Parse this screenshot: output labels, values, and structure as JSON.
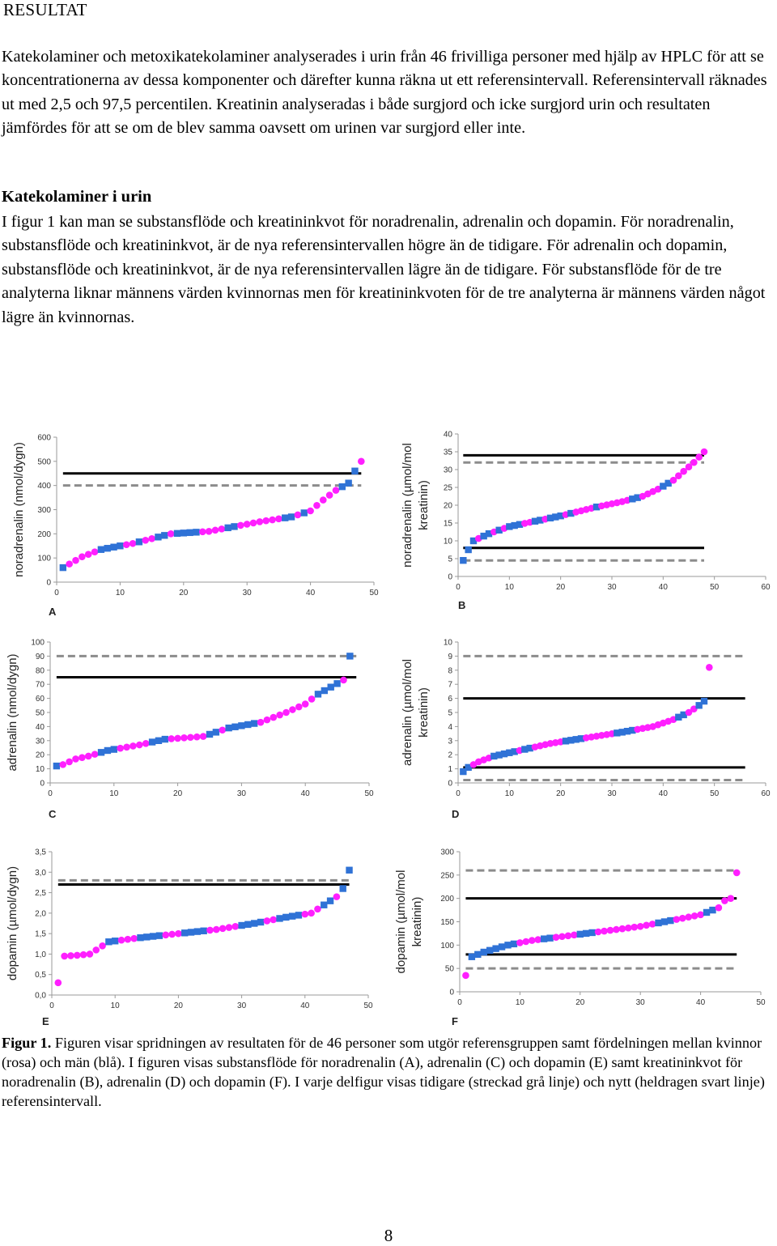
{
  "heading": "RESULTAT",
  "paragraph1": "Katekolaminer och metoxikatekolaminer analyserades i urin från 46 frivilliga personer med hjälp av HPLC för att se koncentrationerna av dessa komponenter och därefter kunna räkna ut ett referensintervall. Referensintervall räknades ut med 2,5 och 97,5 percentilen. Kreatinin analyseradas i både surgjord och icke surgjord urin och resultaten jämfördes för att se om de blev samma oavsett om urinen var surgjord eller inte.",
  "subheading": "Katekolaminer i urin",
  "paragraph2": "I figur 1 kan man se substansflöde och kreatininkvot för noradrenalin, adrenalin och dopamin. För noradrenalin, substansflöde och kreatininkvot, är de nya referensintervallen högre än de tidigare. För adrenalin och dopamin, substansflöde och kreatininkvot, är de nya referensintervallen lägre än de tidigare. För substansflöde för de tre analyterna liknar männens värden kvinnornas men för kreatininkvoten för de tre analyterna är männens värden något lägre än kvinnornas.",
  "caption": {
    "label": "Figur 1.",
    "text": " Figuren visar spridningen av resultaten för de 46 personer som utgör referensgruppen samt fördelningen mellan kvinnor (rosa) och män (blå). I figuren visas substansflöde för noradrenalin (A), adrenalin (C) och dopamin (E) samt kreatininkvot för noradrenalin (B), adrenalin (D) och dopamin (F). I varje delfigur visas tidigare (streckad grå linje) och nytt (heldragen svart linje) referensintervall."
  },
  "page_number": "8",
  "colors": {
    "women": "#ff1fff",
    "men": "#2f72d6",
    "new_interval": "#000000",
    "old_interval": "#8c8c8c"
  },
  "chart_data": [
    {
      "id": "A",
      "type": "scatter",
      "letter": "A",
      "ylabel": "noradrenalin (nmol/dygn)",
      "xlabel": "",
      "xlim": [
        0,
        50
      ],
      "ylim": [
        0,
        600
      ],
      "xticks": [
        "0",
        "10",
        "20",
        "30",
        "40",
        "50"
      ],
      "yticks": [
        "0",
        "100",
        "200",
        "300",
        "400",
        "500",
        "600"
      ],
      "new_interval": [
        450
      ],
      "old_interval": [
        400
      ],
      "ref_xrange": [
        1,
        48
      ],
      "anchors": [
        [
          1,
          60
        ],
        [
          2,
          75
        ],
        [
          4,
          105
        ],
        [
          7,
          135
        ],
        [
          12,
          160
        ],
        [
          18,
          200
        ],
        [
          24,
          210
        ],
        [
          32,
          250
        ],
        [
          37,
          270
        ],
        [
          40,
          295
        ],
        [
          42,
          340
        ],
        [
          44,
          380
        ],
        [
          46,
          410
        ],
        [
          47,
          460
        ],
        [
          48,
          500
        ]
      ],
      "men_indices": [
        1,
        7,
        8,
        9,
        10,
        13,
        16,
        17,
        19,
        20,
        21,
        22,
        27,
        28,
        36,
        37,
        39,
        45,
        46,
        47
      ]
    },
    {
      "id": "B",
      "type": "scatter",
      "letter": "B",
      "ylabel": "noradrenalin (µmol/mol kreatinin)",
      "xlabel": "",
      "xlim": [
        0,
        60
      ],
      "ylim": [
        0,
        40
      ],
      "xticks": [
        "0",
        "10",
        "20",
        "30",
        "40",
        "50",
        "60"
      ],
      "yticks": [
        "0",
        "5",
        "10",
        "15",
        "20",
        "25",
        "30",
        "35",
        "40"
      ],
      "new_interval": [
        34,
        8
      ],
      "old_interval": [
        32,
        4.5
      ],
      "ref_xrange": [
        1,
        48
      ],
      "anchors": [
        [
          1,
          4.5
        ],
        [
          2,
          7.5
        ],
        [
          3,
          10
        ],
        [
          6,
          12
        ],
        [
          10,
          14
        ],
        [
          15,
          15.5
        ],
        [
          20,
          17
        ],
        [
          27,
          19.5
        ],
        [
          32,
          21
        ],
        [
          36,
          22.5
        ],
        [
          39,
          24.5
        ],
        [
          42,
          27
        ],
        [
          44,
          29.5
        ],
        [
          46,
          32
        ],
        [
          47,
          33.5
        ],
        [
          48,
          35
        ]
      ],
      "men_indices": [
        1,
        2,
        3,
        5,
        6,
        8,
        10,
        11,
        12,
        15,
        16,
        18,
        19,
        20,
        22,
        27,
        34,
        35,
        40,
        41
      ]
    },
    {
      "id": "C",
      "type": "scatter",
      "letter": "C",
      "ylabel": "adrenalin (nmol/dygn)",
      "xlabel": "",
      "xlim": [
        0,
        50
      ],
      "ylim": [
        0,
        100
      ],
      "xticks": [
        "0",
        "10",
        "20",
        "30",
        "40",
        "50"
      ],
      "yticks": [
        "0",
        "10",
        "20",
        "30",
        "40",
        "50",
        "60",
        "70",
        "80",
        "90",
        "100"
      ],
      "new_interval": [
        75
      ],
      "old_interval": [
        90
      ],
      "ref_xrange": [
        1,
        48
      ],
      "anchors": [
        [
          1,
          12
        ],
        [
          2,
          13
        ],
        [
          4,
          17
        ],
        [
          6,
          19
        ],
        [
          9,
          23
        ],
        [
          14,
          27
        ],
        [
          18,
          31
        ],
        [
          24,
          33
        ],
        [
          28,
          39
        ],
        [
          33,
          43
        ],
        [
          37,
          50
        ],
        [
          40,
          56
        ],
        [
          42,
          63
        ],
        [
          44,
          68
        ],
        [
          46,
          73
        ],
        [
          47,
          90
        ]
      ],
      "men_indices": [
        1,
        8,
        9,
        10,
        16,
        17,
        18,
        25,
        26,
        28,
        29,
        30,
        31,
        32,
        42,
        43,
        44,
        45,
        47
      ]
    },
    {
      "id": "D",
      "type": "scatter",
      "letter": "D",
      "ylabel": "adrenalin (µmol/mol kreatinin)",
      "xlabel": "",
      "xlim": [
        0,
        60
      ],
      "ylim": [
        0,
        10
      ],
      "xticks": [
        "0",
        "10",
        "20",
        "30",
        "40",
        "50",
        "60"
      ],
      "yticks": [
        "0",
        "1",
        "2",
        "3",
        "4",
        "5",
        "6",
        "7",
        "8",
        "9",
        "10"
      ],
      "new_interval": [
        6,
        1.1
      ],
      "old_interval": [
        9,
        0.2
      ],
      "ref_xrange": [
        1,
        56
      ],
      "anchors": [
        [
          1,
          0.8
        ],
        [
          2,
          1.1
        ],
        [
          4,
          1.5
        ],
        [
          7,
          1.9
        ],
        [
          12,
          2.3
        ],
        [
          18,
          2.8
        ],
        [
          25,
          3.2
        ],
        [
          32,
          3.6
        ],
        [
          38,
          4.0
        ],
        [
          42,
          4.5
        ],
        [
          45,
          5.0
        ],
        [
          47,
          5.5
        ],
        [
          48,
          5.8
        ],
        [
          49,
          8.2
        ]
      ],
      "men_indices": [
        1,
        2,
        7,
        8,
        9,
        10,
        11,
        13,
        14,
        21,
        22,
        23,
        24,
        31,
        32,
        33,
        34,
        43,
        44,
        47,
        48
      ]
    },
    {
      "id": "E",
      "type": "scatter",
      "letter": "E",
      "ylabel": "dopamin (µmol/dygn)",
      "xlabel": "",
      "xlim": [
        0,
        50
      ],
      "ylim": [
        0,
        3.5
      ],
      "xticks": [
        "0",
        "10",
        "20",
        "30",
        "40",
        "50"
      ],
      "yticks": [
        "0,0",
        "0,5",
        "1,0",
        "1,5",
        "2,0",
        "2,5",
        "3,0",
        "3,5"
      ],
      "new_interval": [
        2.7
      ],
      "old_interval": [
        2.8
      ],
      "ref_xrange": [
        1,
        47
      ],
      "anchors": [
        [
          1,
          0.3
        ],
        [
          2,
          0.95
        ],
        [
          4,
          0.97
        ],
        [
          6,
          1.0
        ],
        [
          9,
          1.3
        ],
        [
          14,
          1.4
        ],
        [
          20,
          1.5
        ],
        [
          26,
          1.6
        ],
        [
          32,
          1.75
        ],
        [
          37,
          1.9
        ],
        [
          41,
          2.0
        ],
        [
          43,
          2.2
        ],
        [
          45,
          2.4
        ],
        [
          46,
          2.6
        ],
        [
          47,
          3.05
        ]
      ],
      "men_indices": [
        9,
        10,
        14,
        15,
        16,
        17,
        21,
        22,
        23,
        24,
        30,
        31,
        32,
        33,
        36,
        37,
        38,
        39,
        43,
        44,
        46,
        47
      ]
    },
    {
      "id": "F",
      "type": "scatter",
      "letter": "F",
      "ylabel": "dopamin (µmol/mol kreatinin)",
      "xlabel": "",
      "xlim": [
        0,
        50
      ],
      "ylim": [
        0,
        300
      ],
      "xticks": [
        "0",
        "10",
        "20",
        "30",
        "40",
        "50"
      ],
      "yticks": [
        "0",
        "50",
        "100",
        "150",
        "200",
        "250",
        "300"
      ],
      "new_interval": [
        200,
        80
      ],
      "old_interval": [
        260,
        50
      ],
      "ref_xrange": [
        1,
        46
      ],
      "anchors": [
        [
          1,
          35
        ],
        [
          2,
          75
        ],
        [
          4,
          85
        ],
        [
          8,
          100
        ],
        [
          12,
          110
        ],
        [
          18,
          120
        ],
        [
          24,
          130
        ],
        [
          30,
          140
        ],
        [
          36,
          155
        ],
        [
          40,
          165
        ],
        [
          43,
          180
        ],
        [
          44,
          195
        ],
        [
          45,
          200
        ],
        [
          46,
          255
        ]
      ],
      "men_indices": [
        2,
        3,
        4,
        5,
        6,
        7,
        8,
        9,
        14,
        15,
        20,
        21,
        22,
        33,
        34,
        35,
        41,
        42
      ]
    }
  ]
}
